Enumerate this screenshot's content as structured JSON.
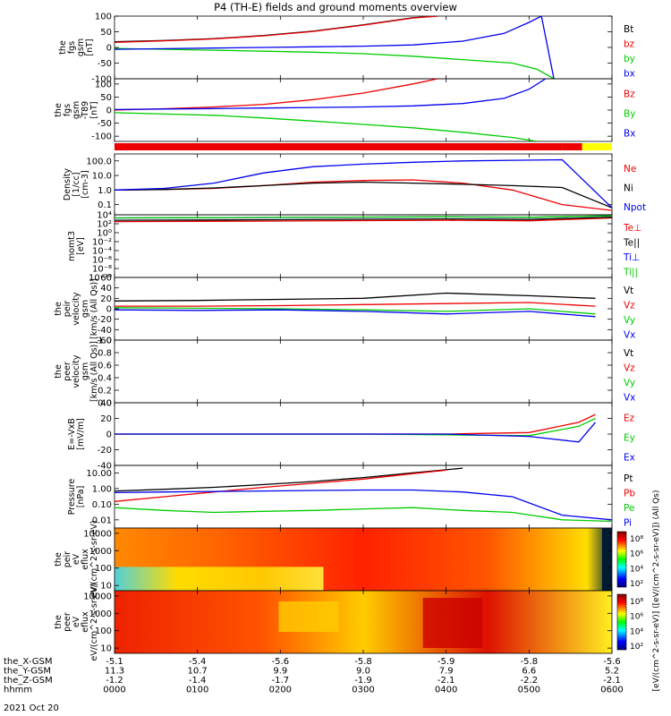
{
  "title": "P4 (TH-E) fields and ground moments overview",
  "date_label": "2021 Oct 20",
  "colors": {
    "black": "#000000",
    "red": "#ee0000",
    "green": "#00cc00",
    "blue": "#0000ee",
    "yellow": "#ffff00"
  },
  "chart_data": [
    {
      "type": "line",
      "ylabel_lines": [
        "the",
        "fgs",
        "gsm",
        "[nT]"
      ],
      "ylim": [
        -100,
        100
      ],
      "ticks": [
        "100",
        "50",
        "0",
        "-50",
        "-100"
      ],
      "series": [
        {
          "name": "Bt",
          "color": "black",
          "x": [
            0,
            60,
            120,
            180,
            240,
            300,
            360,
            390
          ],
          "y": [
            18,
            22,
            28,
            38,
            52,
            72,
            95,
            100
          ]
        },
        {
          "name": "bz",
          "color": "red",
          "x": [
            0,
            60,
            120,
            180,
            240,
            300,
            360,
            390
          ],
          "y": [
            16,
            21,
            27,
            37,
            51,
            71,
            94,
            100
          ]
        },
        {
          "name": "by",
          "color": "green",
          "x": [
            0,
            60,
            120,
            180,
            240,
            300,
            360,
            480,
            510,
            530
          ],
          "y": [
            -3,
            -6,
            -9,
            -12,
            -15,
            -20,
            -28,
            -50,
            -70,
            -100
          ]
        },
        {
          "name": "bx",
          "color": "blue",
          "x": [
            0,
            60,
            120,
            180,
            240,
            300,
            360,
            420,
            470,
            500,
            515,
            530
          ],
          "y": [
            -6,
            -4,
            -2,
            0,
            2,
            4,
            8,
            20,
            45,
            80,
            100,
            -100
          ]
        }
      ]
    },
    {
      "type": "line",
      "ylabel_lines": [
        "the",
        "fgs",
        "gsm",
        "-T89",
        "[nT]"
      ],
      "ylim": [
        -120,
        120
      ],
      "ticks": [
        "100",
        "50",
        "0",
        "-50",
        "-100"
      ],
      "series": [
        {
          "name": "Bz",
          "color": "red",
          "x": [
            0,
            60,
            120,
            180,
            240,
            300,
            360,
            390
          ],
          "y": [
            0,
            5,
            12,
            22,
            40,
            65,
            100,
            120
          ]
        },
        {
          "name": "By",
          "color": "green",
          "x": [
            0,
            60,
            120,
            180,
            240,
            300,
            360,
            420,
            480,
            510
          ],
          "y": [
            -10,
            -15,
            -20,
            -30,
            -42,
            -55,
            -68,
            -85,
            -105,
            -120
          ]
        },
        {
          "name": "Bx",
          "color": "blue",
          "x": [
            0,
            60,
            120,
            180,
            240,
            300,
            360,
            420,
            470,
            500,
            520
          ],
          "y": [
            2,
            4,
            6,
            8,
            10,
            12,
            16,
            25,
            45,
            80,
            120
          ]
        }
      ]
    },
    {
      "type": "line",
      "ylabel_lines": [
        "Density",
        "[1/cc]",
        "[cm-3]"
      ],
      "yscale": "log",
      "ylim": [
        0.02,
        300
      ],
      "ticks": [
        "100.0",
        "10.0",
        "1.0",
        "0.1"
      ],
      "series": [
        {
          "name": "Ne",
          "color": "red",
          "x": [
            0,
            60,
            120,
            180,
            240,
            300,
            360,
            420,
            480,
            540,
            600
          ],
          "y": [
            1.0,
            1.1,
            1.3,
            2.0,
            3.5,
            4.5,
            5.0,
            3.0,
            1.0,
            0.1,
            0.04
          ]
        },
        {
          "name": "Ni",
          "color": "black",
          "x": [
            0,
            60,
            120,
            180,
            240,
            300,
            360,
            420,
            480,
            540,
            600
          ],
          "y": [
            1.0,
            1.1,
            1.4,
            2.0,
            3.0,
            3.5,
            3.0,
            2.5,
            2.0,
            1.5,
            0.06
          ]
        },
        {
          "name": "Npot",
          "color": "blue",
          "x": [
            0,
            60,
            120,
            180,
            240,
            300,
            360,
            420,
            480,
            540,
            600
          ],
          "y": [
            1.0,
            1.3,
            3.0,
            15,
            40,
            60,
            80,
            100,
            110,
            120,
            0.06
          ]
        }
      ]
    },
    {
      "type": "line",
      "ylabel_lines": [
        "momt3",
        "[eV]"
      ],
      "yscale": "log",
      "ylim": [
        1e-10,
        10000.0
      ],
      "ticks": [
        "10⁴",
        "10²",
        "10⁰",
        "10⁻²",
        "10⁻⁴",
        "10⁻⁶",
        "10⁻⁸",
        "10⁻¹⁰"
      ],
      "series": [
        {
          "name": "Te⊥",
          "color": "red",
          "x": [
            0,
            100,
            200,
            300,
            400,
            500,
            600
          ],
          "y": [
            300,
            350,
            400,
            500,
            600,
            450,
            2000
          ]
        },
        {
          "name": "Te||",
          "color": "black",
          "x": [
            0,
            100,
            200,
            300,
            400,
            500,
            600
          ],
          "y": [
            600,
            700,
            800,
            1000,
            1200,
            900,
            3000
          ]
        },
        {
          "name": "Ti⊥",
          "color": "blue",
          "x": [
            0,
            100,
            200,
            300,
            400,
            500,
            600
          ],
          "y": [
            2000,
            2200,
            2500,
            3000,
            3500,
            2800,
            6000
          ]
        },
        {
          "name": "Ti||",
          "color": "green",
          "x": [
            0,
            100,
            200,
            300,
            400,
            500,
            600
          ],
          "y": [
            2000,
            2300,
            2600,
            3100,
            3600,
            2900,
            6000
          ]
        }
      ]
    },
    {
      "type": "line",
      "ylabel_lines": [
        "the",
        "peir",
        "velocity",
        "gsm",
        "[km/s (All Qs)]"
      ],
      "ylim": [
        -60,
        60
      ],
      "ticks": [
        "60",
        "40",
        "20",
        "0",
        "-20",
        "-40",
        "-60"
      ],
      "series": [
        {
          "name": "Vt",
          "color": "black",
          "x": [
            0,
            100,
            200,
            300,
            400,
            500,
            580
          ],
          "y": [
            15,
            16,
            18,
            20,
            30,
            25,
            20
          ]
        },
        {
          "name": "Vz",
          "color": "red",
          "x": [
            0,
            100,
            200,
            300,
            400,
            500,
            580
          ],
          "y": [
            5,
            5,
            6,
            8,
            10,
            12,
            5
          ]
        },
        {
          "name": "Vy",
          "color": "green",
          "x": [
            0,
            100,
            200,
            300,
            400,
            500,
            580
          ],
          "y": [
            2,
            1,
            0,
            -2,
            -5,
            0,
            -10
          ]
        },
        {
          "name": "Vx",
          "color": "blue",
          "x": [
            0,
            100,
            200,
            300,
            400,
            500,
            580
          ],
          "y": [
            -2,
            -3,
            -2,
            -5,
            -10,
            -5,
            -15
          ]
        }
      ]
    },
    {
      "type": "line",
      "ylabel_lines": [
        "the",
        "peer",
        "velocity",
        "gsm",
        "[km/s (All Qs)]"
      ],
      "ylim": [
        0,
        1
      ],
      "ticks": [
        "1.0",
        "0.8",
        "0.6",
        "0.4",
        "0.2",
        "0.0"
      ],
      "series": [
        {
          "name": "Vt",
          "color": "black",
          "x": [],
          "y": []
        },
        {
          "name": "Vz",
          "color": "red",
          "x": [],
          "y": []
        },
        {
          "name": "Vy",
          "color": "green",
          "x": [],
          "y": []
        },
        {
          "name": "Vx",
          "color": "blue",
          "x": [],
          "y": []
        }
      ]
    },
    {
      "type": "line",
      "ylabel_lines": [
        "E=-VxB",
        "[mV/m]"
      ],
      "ylim": [
        -40,
        40
      ],
      "ticks": [
        "40",
        "20",
        "0",
        "-20",
        "-40"
      ],
      "series": [
        {
          "name": "Ez",
          "color": "red",
          "x": [
            0,
            100,
            200,
            300,
            400,
            500,
            560,
            580
          ],
          "y": [
            0,
            0,
            0,
            0,
            0,
            2,
            15,
            25
          ]
        },
        {
          "name": "Ey",
          "color": "green",
          "x": [
            0,
            100,
            200,
            300,
            400,
            500,
            560,
            580
          ],
          "y": [
            0,
            0,
            0,
            0,
            -1,
            -2,
            10,
            20
          ]
        },
        {
          "name": "Ex",
          "color": "blue",
          "x": [
            0,
            100,
            200,
            300,
            400,
            500,
            560,
            580
          ],
          "y": [
            0,
            0,
            0,
            0,
            0,
            -3,
            -10,
            15
          ]
        }
      ]
    },
    {
      "type": "line",
      "ylabel_lines": [
        "Pressure",
        "[nPa]"
      ],
      "yscale": "log",
      "ylim": [
        0.003,
        30
      ],
      "ticks": [
        "10.00",
        "1.00",
        "0.10",
        "0.01"
      ],
      "series": [
        {
          "name": "Pt",
          "color": "black",
          "x": [
            0,
            60,
            120,
            180,
            240,
            300,
            360,
            420
          ],
          "y": [
            0.7,
            0.9,
            1.2,
            1.8,
            2.8,
            5,
            10,
            20
          ]
        },
        {
          "name": "Pb",
          "color": "red",
          "x": [
            0,
            60,
            120,
            180,
            240,
            300,
            360,
            400
          ],
          "y": [
            0.15,
            0.3,
            0.6,
            1.2,
            2.2,
            4,
            9,
            15
          ]
        },
        {
          "name": "Pe",
          "color": "green",
          "x": [
            0,
            60,
            120,
            180,
            240,
            300,
            360,
            420,
            480,
            540,
            600
          ],
          "y": [
            0.06,
            0.04,
            0.03,
            0.035,
            0.04,
            0.05,
            0.06,
            0.04,
            0.03,
            0.01,
            0.008
          ]
        },
        {
          "name": "Pi",
          "color": "blue",
          "x": [
            0,
            60,
            120,
            180,
            240,
            300,
            360,
            420,
            480,
            540,
            600
          ],
          "y": [
            0.55,
            0.6,
            0.65,
            0.7,
            0.75,
            0.8,
            0.8,
            0.6,
            0.3,
            0.02,
            0.01
          ]
        }
      ]
    },
    {
      "type": "heatmap",
      "ylabel_lines": [
        "the",
        "peir",
        "eV",
        "eflux",
        "eV/(cm^2-s-sr-eV)"
      ],
      "yscale": "log",
      "ylim": [
        5,
        20000
      ],
      "ticks": [
        "10000",
        "1000",
        "100",
        "10"
      ],
      "colorbar_ticks": [
        "10⁸",
        "10⁶",
        "10⁴",
        "10²"
      ]
    },
    {
      "type": "heatmap",
      "ylabel_lines": [
        "the",
        "peer",
        "eV",
        "eflux",
        "eV/(cm^2-s-sr-eV)"
      ],
      "yscale": "log",
      "ylim": [
        5,
        20000
      ],
      "ticks": [
        "10000",
        "1000",
        "100",
        "10"
      ],
      "colorbar_ticks": [
        "10⁸",
        "10⁶",
        "10⁴",
        "10²"
      ]
    }
  ],
  "colorbar_label": "[eV/(cm^2-s-sr-eV)] ([eV/(cm^2-s-sr-eV)]) (All Qs)",
  "x_axis": {
    "range_minutes": [
      0,
      600
    ],
    "row_labels": [
      "the_X-GSM",
      "the_Y-GSM",
      "the_Z-GSM",
      "hhmm"
    ],
    "ticks": [
      {
        "min": 0,
        "vals": [
          "-5.1",
          "11.3",
          "-1.2",
          "0000"
        ]
      },
      {
        "min": 100,
        "vals": [
          "-5.4",
          "10.7",
          "-1.4",
          "0100"
        ]
      },
      {
        "min": 200,
        "vals": [
          "-5.6",
          "9.9",
          "-1.7",
          "0200"
        ]
      },
      {
        "min": 300,
        "vals": [
          "-5.8",
          "9.0",
          "-1.9",
          "0300"
        ]
      },
      {
        "min": 400,
        "vals": [
          "-5.9",
          "7.9",
          "-2.1",
          "0400"
        ]
      },
      {
        "min": 500,
        "vals": [
          "-5.8",
          "6.6",
          "-2.2",
          "0500"
        ]
      },
      {
        "min": 600,
        "vals": [
          "-5.6",
          "5.2",
          "-2.1",
          "0600"
        ]
      }
    ]
  }
}
